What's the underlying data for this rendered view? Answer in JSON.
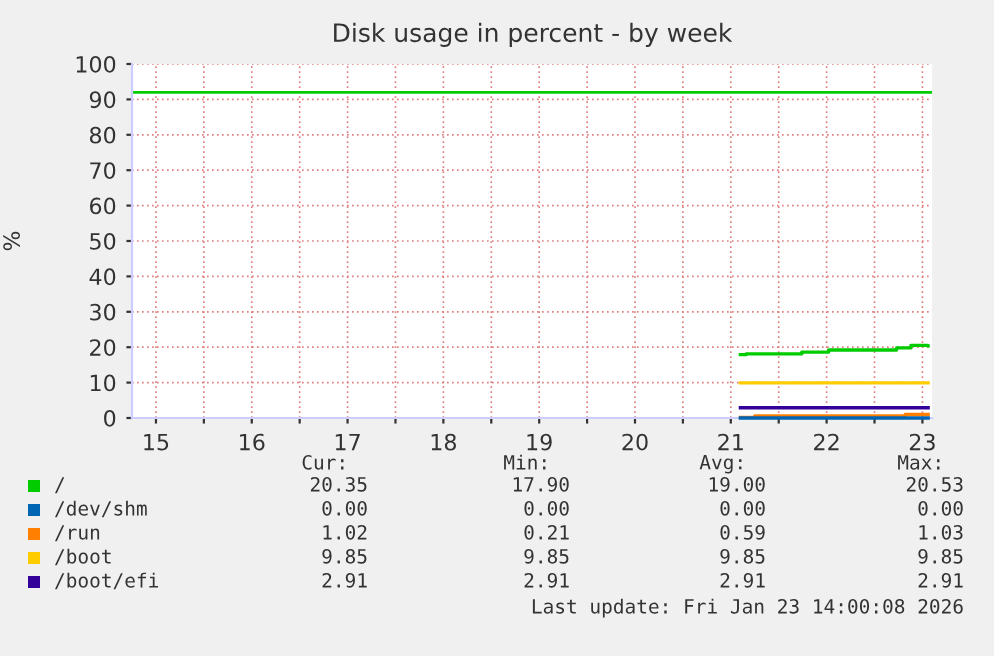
{
  "chart_data": {
    "type": "step",
    "title": "Disk usage in percent - by week",
    "ylabel": "%",
    "xlim": [
      15.25,
      23.6
    ],
    "ylim": [
      0,
      100
    ],
    "xticks": [
      {
        "value": 15.5,
        "label": "15"
      },
      {
        "value": 16,
        "label": null
      },
      {
        "value": 16.5,
        "label": "16"
      },
      {
        "value": 17,
        "label": null
      },
      {
        "value": 17.5,
        "label": "17"
      },
      {
        "value": 18,
        "label": null
      },
      {
        "value": 18.5,
        "label": "18"
      },
      {
        "value": 19,
        "label": null
      },
      {
        "value": 19.5,
        "label": "19"
      },
      {
        "value": 20,
        "label": null
      },
      {
        "value": 20.5,
        "label": "20"
      },
      {
        "value": 21,
        "label": null
      },
      {
        "value": 21.5,
        "label": "21"
      },
      {
        "value": 22,
        "label": null
      },
      {
        "value": 22.5,
        "label": "22"
      },
      {
        "value": 23,
        "label": null
      },
      {
        "value": 23.5,
        "label": "23"
      }
    ],
    "yticks": [
      0,
      10,
      20,
      30,
      40,
      50,
      60,
      70,
      80,
      90,
      100
    ],
    "grid": true,
    "legend": "bottom left",
    "ref_lines": [
      {
        "axis": "y",
        "value": 92,
        "color": "#00cc00"
      }
    ],
    "series": [
      {
        "name": "/",
        "color": "#00cc00",
        "x": [
          21.6,
          21.66,
          22.24,
          22.52,
          23.23,
          23.38,
          23.56
        ],
        "values": [
          17.9,
          18.1,
          18.6,
          19.2,
          19.8,
          20.5,
          20.4
        ]
      },
      {
        "name": "/dev/shm",
        "color": "#0066b3",
        "x": [
          21.6,
          23.56
        ],
        "values": [
          0,
          0
        ]
      },
      {
        "name": "/run",
        "color": "#ff8000",
        "x": [
          21.6,
          21.75,
          23.32,
          23.56
        ],
        "values": [
          0.2,
          0.6,
          1.0,
          1.0
        ]
      },
      {
        "name": "/boot",
        "color": "#ffcc00",
        "x": [
          21.6,
          23.56
        ],
        "values": [
          9.9,
          9.9
        ]
      },
      {
        "name": "/boot/efi",
        "color": "#330099",
        "x": [
          21.6,
          23.56
        ],
        "values": [
          2.9,
          2.9
        ]
      }
    ],
    "annotations": [
      "Cur:",
      "Min:",
      "Avg:",
      "Max:",
      "20.35",
      "17.90",
      "19.00",
      "20.53",
      "0.00",
      "0.00",
      "0.00",
      "0.00",
      "1.02",
      "0.21",
      "0.59",
      "1.03",
      "9.85",
      "9.85",
      "9.85",
      "9.85",
      "2.91",
      "2.91",
      "2.91",
      "2.91",
      "Last update: Fri Jan 23 14:00:08 2026"
    ]
  }
}
